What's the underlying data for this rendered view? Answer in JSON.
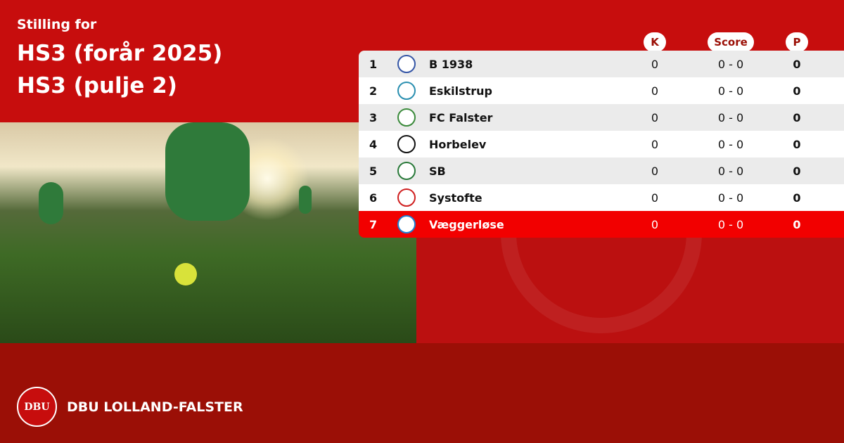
{
  "header": {
    "subtitle": "Stilling for",
    "title1": "HS3 (forår 2025)",
    "title2": "HS3 (pulje 2)"
  },
  "columns": {
    "k": "K",
    "score": "Score",
    "p": "P"
  },
  "rows": [
    {
      "rank": "1",
      "team": "B 1938",
      "k": "0",
      "score": "0 - 0",
      "p": "0",
      "logo_color": "#3556a6"
    },
    {
      "rank": "2",
      "team": "Eskilstrup",
      "k": "0",
      "score": "0 - 0",
      "p": "0",
      "logo_color": "#2a8fb0"
    },
    {
      "rank": "3",
      "team": "FC Falster",
      "k": "0",
      "score": "0 - 0",
      "p": "0",
      "logo_color": "#3b8a3b"
    },
    {
      "rank": "4",
      "team": "Horbelev",
      "k": "0",
      "score": "0 - 0",
      "p": "0",
      "logo_color": "#111111"
    },
    {
      "rank": "5",
      "team": "SB",
      "k": "0",
      "score": "0 - 0",
      "p": "0",
      "logo_color": "#2a7a3a"
    },
    {
      "rank": "6",
      "team": "Systofte",
      "k": "0",
      "score": "0 - 0",
      "p": "0",
      "logo_color": "#d02020"
    },
    {
      "rank": "7",
      "team": "Væggerløse",
      "k": "0",
      "score": "0 - 0",
      "p": "0",
      "logo_color": "#1f7fd0",
      "highlighted": true
    }
  ],
  "footer": {
    "logo_text": "DBU",
    "org": "DBU LOLLAND-FALSTER"
  },
  "colors": {
    "header_red": "#c70d0d",
    "footer_red": "#9b0f06",
    "highlight": "#f20000"
  }
}
